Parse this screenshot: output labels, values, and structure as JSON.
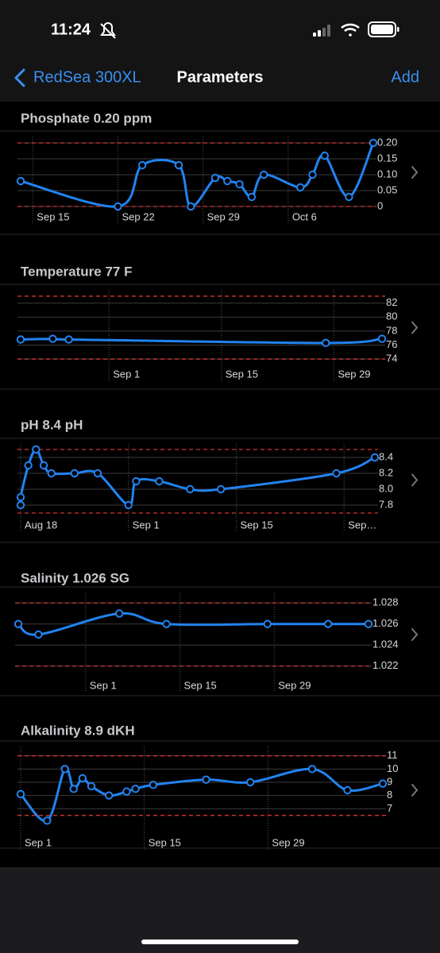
{
  "status_bar": {
    "time": "11:24"
  },
  "nav": {
    "back": "RedSea 300XL",
    "title": "Parameters",
    "action": "Add"
  },
  "chart_data": [
    {
      "type": "line",
      "title": "Phosphate 0.20 ppm",
      "color": "#2183f0",
      "target_color": "#d9332e",
      "grid": true,
      "x": [
        "Sep 14",
        "Sep 22",
        "Sep 24",
        "Sep 27",
        "Sep 28",
        "Sep 30",
        "Oct 1",
        "Oct 2",
        "Oct 3",
        "Oct 4",
        "Oct 7",
        "Oct 8",
        "Oct 9",
        "Oct 11",
        "Oct 13"
      ],
      "values": [
        0.08,
        0,
        0.13,
        0.13,
        0,
        0.09,
        0.08,
        0.07,
        0.03,
        0.1,
        0.06,
        0.1,
        0.16,
        0.03,
        0.2
      ],
      "xlim": [
        "Sep 14",
        "Oct 13"
      ],
      "xticks": [
        "Sep 15",
        "Sep 22",
        "Sep 29",
        "Oct 6"
      ],
      "ylim": [
        -0.005,
        0.22
      ],
      "yticks": [
        {
          "value": 0.2,
          "label": "0.20"
        },
        0.15,
        {
          "value": 0.1,
          "label": "0.10"
        },
        0.05,
        0
      ],
      "target_range": [
        0,
        0.2
      ]
    },
    {
      "type": "line",
      "title": "Temperature 77 F",
      "color": "#2183f0",
      "target_color": "#d9332e",
      "grid": true,
      "x": [
        "Aug 21",
        "Aug 25",
        "Aug 27",
        "Sep 28",
        "Oct 5"
      ],
      "values": [
        76.8,
        76.9,
        76.8,
        76.3,
        76.9
      ],
      "xlim": [
        "Aug 21",
        "Oct 5"
      ],
      "xticks": [
        "Sep 1",
        "Sep 15",
        "Sep 29"
      ],
      "ylim": [
        73.1,
        83.9
      ],
      "yticks": [
        82,
        80,
        78,
        76,
        74
      ],
      "target_range": [
        74,
        83
      ]
    },
    {
      "type": "line",
      "title": "pH 8.4 pH",
      "color": "#2183f0",
      "target_color": "#d9332e",
      "grid": true,
      "x": [
        "Aug 18",
        "Aug 18",
        "Aug 19",
        "Aug 20",
        "Aug 21",
        "Aug 22",
        "Aug 25",
        "Aug 28",
        "Sep 1",
        "Sep 2",
        "Sep 5",
        "Sep 9",
        "Sep 13",
        "Sep 28",
        "Oct 3"
      ],
      "values": [
        7.8,
        7.9,
        8.3,
        8.5,
        8.3,
        8.2,
        8.2,
        8.2,
        7.8,
        8.1,
        8.1,
        8.0,
        8.0,
        8.2,
        8.4
      ],
      "xlim": [
        "Aug 18",
        "Oct 3"
      ],
      "xticks": [
        "Aug 18",
        "Sep 1",
        "Sep 15",
        {
          "value": "Sep 29",
          "label": "Sep…"
        }
      ],
      "ylim": [
        7.66,
        8.57
      ],
      "yticks": [
        8.4,
        8.2,
        {
          "value": 8,
          "label": "8.0"
        },
        7.8
      ],
      "target_range": [
        7.7,
        8.5
      ]
    },
    {
      "type": "line",
      "title": "Salinity 1.026 SG",
      "color": "#2183f0",
      "target_color": "#d9332e",
      "grid": true,
      "x": [
        "Aug 22",
        "Aug 25",
        "Sep 6",
        "Sep 13",
        "Sep 28",
        "Oct 7",
        "Oct 13"
      ],
      "values": [
        1.026,
        1.025,
        1.027,
        1.026,
        1.026,
        1.026,
        1.026
      ],
      "xlim": [
        "Aug 22",
        "Oct 13"
      ],
      "xticks": [
        "Sep 1",
        "Sep 15",
        "Sep 29"
      ],
      "ylim": [
        1.021,
        1.029
      ],
      "yticks": [
        1.028,
        1.026,
        1.024,
        1.022
      ],
      "target_range": [
        1.022,
        1.028
      ]
    },
    {
      "type": "line",
      "title": "Alkalinity 8.9 dKH",
      "color": "#2183f0",
      "target_color": "#d9332e",
      "grid": true,
      "x": [
        "Sep 1",
        "Sep 4",
        "Sep 6",
        "Sep 7",
        "Sep 8",
        "Sep 9",
        "Sep 11",
        "Sep 13",
        "Sep 14",
        "Sep 16",
        "Sep 22",
        "Sep 27",
        "Oct 4",
        "Oct 8",
        "Oct 12"
      ],
      "values": [
        8.1,
        6.1,
        10,
        8.5,
        9.3,
        8.7,
        8,
        8.3,
        8.5,
        8.8,
        9.2,
        9,
        10,
        8.4,
        8.9
      ],
      "xlim": [
        "Sep 1",
        "Oct 12"
      ],
      "xticks": [
        "Sep 1",
        "Sep 15",
        "Sep 29"
      ],
      "ylim": [
        5.1,
        11.7
      ],
      "yticks": [
        11,
        10,
        9,
        8,
        7
      ],
      "target_range": [
        6.5,
        11
      ]
    }
  ]
}
